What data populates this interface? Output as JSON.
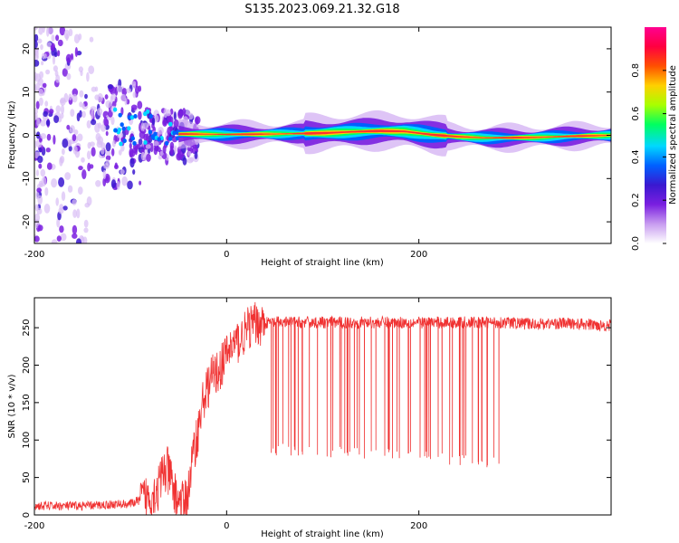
{
  "title": "S135.2023.069.21.32.G18",
  "chart_data": [
    {
      "type": "heatmap",
      "xlabel": "Height of straight line (km)",
      "ylabel": "Frequency (Hz)",
      "xlim": [
        -200,
        400
      ],
      "ylim": [
        -25,
        25
      ],
      "x_ticks": [
        "-200",
        "0",
        "200"
      ],
      "y_ticks": [
        "20",
        "10",
        "0",
        "-10",
        "-20"
      ],
      "grid": false,
      "colorbar": {
        "label": "Normalized spectral amplitude",
        "range": [
          0,
          1
        ],
        "ticks": [
          "0.0",
          "0.2",
          "0.4",
          "0.6",
          "0.8"
        ],
        "colormap": [
          "#ffffff",
          "#c89cf0",
          "#7a1fe0",
          "#3a18d0",
          "#0060ff",
          "#00d8ff",
          "#00ff60",
          "#a8ff00",
          "#ffd000",
          "#ff5000",
          "#ff0040",
          "#ff0090"
        ]
      },
      "ridge_center_hz": {
        "x": [
          -50,
          -40,
          0,
          50,
          100,
          130,
          160,
          185,
          200,
          215,
          240,
          270,
          320,
          360,
          400
        ],
        "y": [
          0.3,
          0.3,
          0.2,
          0.3,
          0.5,
          0.8,
          1.0,
          0.9,
          0.5,
          0.1,
          -0.3,
          -0.6,
          -0.5,
          -0.2,
          0.0
        ]
      },
      "noise_region_km": [
        -200,
        -30
      ]
    },
    {
      "type": "line",
      "xlabel": "Height of straight line (km)",
      "ylabel": "SNR (10 * v/v)",
      "xlim": [
        -200,
        400
      ],
      "ylim": [
        0,
        290
      ],
      "x_ticks": [
        "-200",
        "0",
        "200"
      ],
      "y_ticks": [
        "0",
        "50",
        "100",
        "150",
        "200",
        "250"
      ],
      "grid": false,
      "line_color": "#f03232",
      "series": [
        {
          "x": [
            -200,
            -150,
            -100,
            -90,
            -80,
            -70,
            -65,
            -60,
            -55,
            -50,
            -45,
            -40,
            -35,
            -30,
            -25,
            -20,
            -15,
            -10,
            -5,
            0,
            5,
            10,
            15,
            20,
            25,
            30,
            35,
            40,
            45,
            50,
            60,
            80,
            100,
            120,
            150,
            180,
            200,
            230,
            260,
            290,
            300,
            320,
            350,
            380,
            400
          ],
          "y": [
            12,
            12,
            15,
            20,
            25,
            38,
            60,
            55,
            30,
            20,
            15,
            30,
            80,
            110,
            150,
            170,
            185,
            190,
            200,
            215,
            225,
            230,
            235,
            245,
            252,
            255,
            256,
            256,
            257,
            257,
            257,
            257,
            257,
            257,
            257,
            257,
            257,
            257,
            257,
            257,
            256,
            255,
            256,
            254,
            253
          ]
        }
      ],
      "dropouts": {
        "x_range": [
          40,
          285
        ],
        "floor": [
          [
            40,
            88
          ],
          [
            150,
            82
          ],
          [
            285,
            70
          ]
        ]
      }
    }
  ]
}
